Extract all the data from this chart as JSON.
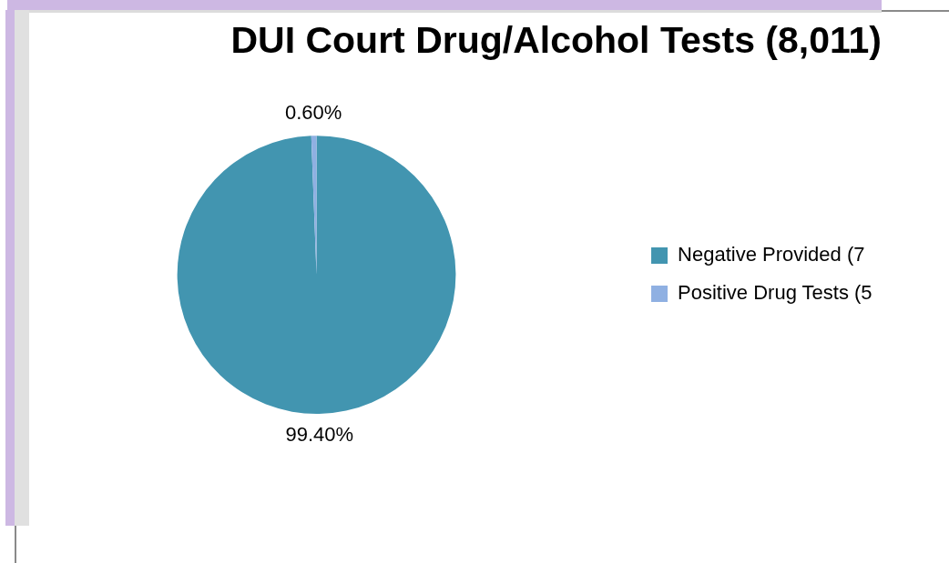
{
  "chart_data": {
    "type": "pie",
    "title": "DUI Court Drug/Alcohol Tests (8,011)",
    "categories": [
      "Negative Provided (7",
      "Positive Drug Tests (5"
    ],
    "values": [
      99.4,
      0.6
    ],
    "colors": [
      "#4295b0",
      "#8fb0e2"
    ],
    "value_labels": [
      "99.40%",
      "0.60%"
    ],
    "legend": "right"
  }
}
